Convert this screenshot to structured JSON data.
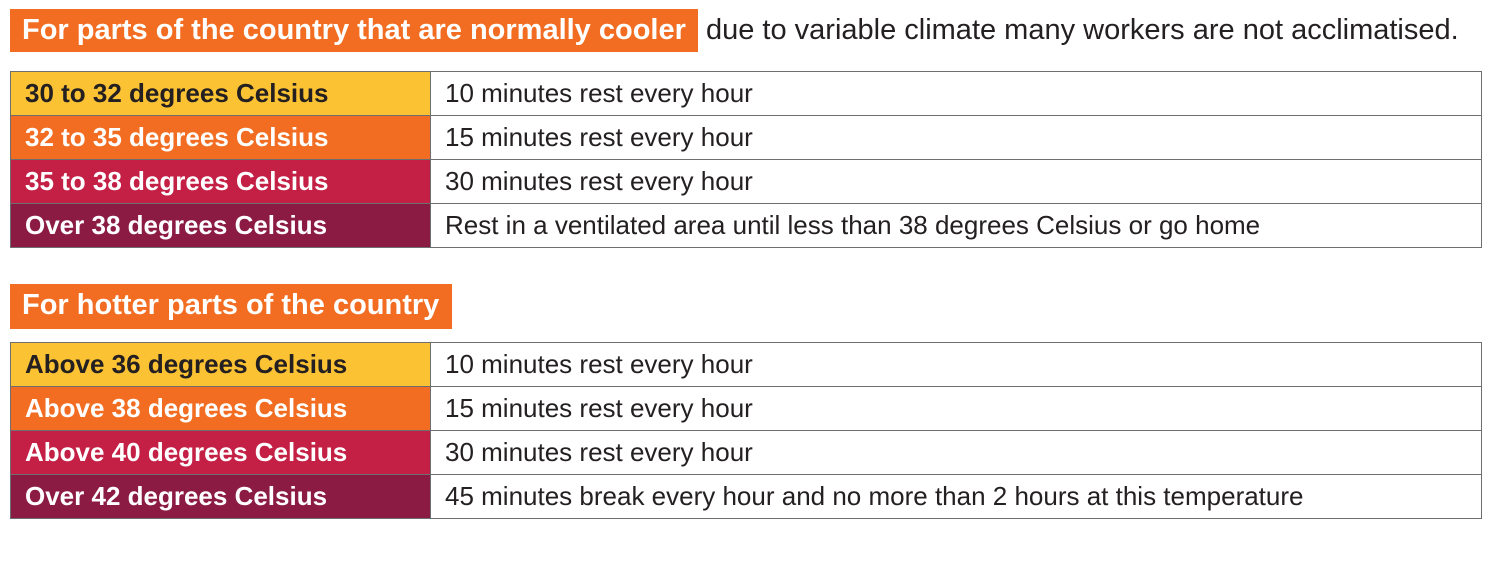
{
  "intro": {
    "highlight_text": "For parts of the country that are normally cooler",
    "following_text": "due to variable climate many workers are not acclimatised."
  },
  "second_heading": "For hotter parts of the country",
  "colors": {
    "highlight_orange": "#f26d21",
    "band_yellow": "#fbc233",
    "band_orange": "#f26d21",
    "band_red": "#c42045",
    "band_maroon": "#8c1b43",
    "table_border_gray": "#6e6e71",
    "dark_text": "#242021",
    "white_text": "#ffffff"
  },
  "tables": [
    {
      "name": "cooler-parts-of-country",
      "rows": [
        {
          "temperature": "30 to 32 degrees Celsius",
          "action": "10 minutes rest every hour",
          "bg": "#fbc233",
          "fg": "#242021"
        },
        {
          "temperature": "32 to 35 degrees Celsius",
          "action": "15 minutes rest every hour",
          "bg": "#f26d21",
          "fg": "#ffffff"
        },
        {
          "temperature": "35 to 38 degrees Celsius",
          "action": "30 minutes rest every hour",
          "bg": "#c42045",
          "fg": "#ffffff"
        },
        {
          "temperature": "Over 38 degrees Celsius",
          "action": "Rest in a ventilated area until less than 38 degrees Celsius or go home",
          "bg": "#8c1b43",
          "fg": "#ffffff"
        }
      ]
    },
    {
      "name": "hotter-parts-of-country",
      "rows": [
        {
          "temperature": "Above 36 degrees Celsius",
          "action": "10 minutes rest every hour",
          "bg": "#fbc233",
          "fg": "#242021"
        },
        {
          "temperature": "Above 38 degrees Celsius",
          "action": "15 minutes rest every hour",
          "bg": "#f26d21",
          "fg": "#ffffff"
        },
        {
          "temperature": "Above 40 degrees Celsius",
          "action": "30 minutes rest every hour",
          "bg": "#c42045",
          "fg": "#ffffff"
        },
        {
          "temperature": "Over 42 degrees Celsius",
          "action": "45 minutes break every hour and no more than 2 hours at this temperature",
          "bg": "#8c1b43",
          "fg": "#ffffff"
        }
      ]
    }
  ]
}
